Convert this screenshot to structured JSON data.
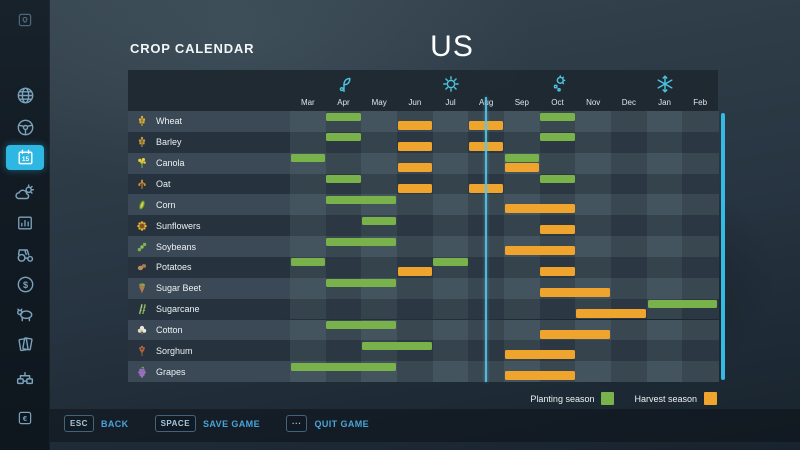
{
  "header": {
    "title": "CROP CALENDAR",
    "map_name": "US"
  },
  "calendar": {
    "months": [
      "Mar",
      "Apr",
      "May",
      "Jun",
      "Jul",
      "Aug",
      "Sep",
      "Oct",
      "Nov",
      "Dec",
      "Jan",
      "Feb"
    ],
    "seasons": [
      {
        "icon": "sprout-icon",
        "month_index": 1
      },
      {
        "icon": "sun-icon",
        "month_index": 4
      },
      {
        "icon": "autumn-leaf-icon",
        "month_index": 7
      },
      {
        "icon": "snowflake-icon",
        "month_index": 10
      }
    ],
    "current_day_line": {
      "month": "Aug",
      "month_index": 5,
      "fraction": 0.5
    },
    "crops": [
      {
        "name": "Wheat",
        "icon": "wheat",
        "planting": [
          [
            1,
            2
          ],
          [
            7,
            8
          ]
        ],
        "harvest": [
          [
            3,
            4
          ],
          [
            5,
            6
          ]
        ]
      },
      {
        "name": "Barley",
        "icon": "barley",
        "planting": [
          [
            1,
            2
          ],
          [
            7,
            8
          ]
        ],
        "harvest": [
          [
            3,
            4
          ],
          [
            5,
            6
          ]
        ]
      },
      {
        "name": "Canola",
        "icon": "canola",
        "planting": [
          [
            0,
            1
          ],
          [
            6,
            7
          ]
        ],
        "harvest": [
          [
            3,
            4
          ],
          [
            6,
            7
          ]
        ]
      },
      {
        "name": "Oat",
        "icon": "oat",
        "planting": [
          [
            1,
            2
          ],
          [
            7,
            8
          ]
        ],
        "harvest": [
          [
            3,
            4
          ],
          [
            5,
            6
          ]
        ]
      },
      {
        "name": "Corn",
        "icon": "corn",
        "planting": [
          [
            1,
            3
          ]
        ],
        "harvest": [
          [
            6,
            8
          ]
        ]
      },
      {
        "name": "Sunflowers",
        "icon": "sunflower",
        "planting": [
          [
            2,
            3
          ]
        ],
        "harvest": [
          [
            7,
            8
          ]
        ]
      },
      {
        "name": "Soybeans",
        "icon": "soybeans",
        "planting": [
          [
            1,
            3
          ]
        ],
        "harvest": [
          [
            6,
            8
          ]
        ]
      },
      {
        "name": "Potatoes",
        "icon": "potatoes",
        "planting": [
          [
            0,
            1
          ],
          [
            4,
            5
          ]
        ],
        "harvest": [
          [
            3,
            4
          ],
          [
            7,
            8
          ]
        ]
      },
      {
        "name": "Sugar Beet",
        "icon": "sugar-beet",
        "planting": [
          [
            1,
            3
          ]
        ],
        "harvest": [
          [
            7,
            9
          ]
        ]
      },
      {
        "name": "Sugarcane",
        "icon": "sugarcane",
        "planting": [
          [
            10,
            12
          ]
        ],
        "harvest": [
          [
            8,
            10
          ]
        ]
      },
      {
        "name": "Cotton",
        "icon": "cotton",
        "planting": [
          [
            1,
            3
          ]
        ],
        "harvest": [
          [
            7,
            9
          ]
        ]
      },
      {
        "name": "Sorghum",
        "icon": "sorghum",
        "planting": [
          [
            2,
            4
          ]
        ],
        "harvest": [
          [
            6,
            8
          ]
        ]
      },
      {
        "name": "Grapes",
        "icon": "grapes",
        "planting": [
          [
            0,
            3
          ]
        ],
        "harvest": [
          [
            6,
            8
          ]
        ]
      }
    ],
    "legend": {
      "planting_label": "Planting season",
      "harvest_label": "Harvest season"
    }
  },
  "sidebar": {
    "items": [
      {
        "id": "map-marker"
      },
      {
        "id": "globe"
      },
      {
        "id": "steering-wheel"
      },
      {
        "id": "calendar",
        "badge": "15",
        "active": true
      },
      {
        "id": "weather"
      },
      {
        "id": "statistics"
      },
      {
        "id": "tractor"
      },
      {
        "id": "finances-dollar",
        "glyph": "$"
      },
      {
        "id": "animals"
      },
      {
        "id": "contracts-cards"
      },
      {
        "id": "production-chains"
      },
      {
        "id": "economy-euro",
        "glyph": "€"
      }
    ]
  },
  "footer": {
    "buttons": [
      {
        "key": "ESC",
        "label": "BACK"
      },
      {
        "key": "SPACE",
        "label": "SAVE GAME"
      },
      {
        "key": "···",
        "label": "QUIT GAME"
      }
    ]
  },
  "colors": {
    "planting_green": "#79b24a",
    "harvest_orange": "#efa42d",
    "accent_cyan": "#35bbe3"
  }
}
